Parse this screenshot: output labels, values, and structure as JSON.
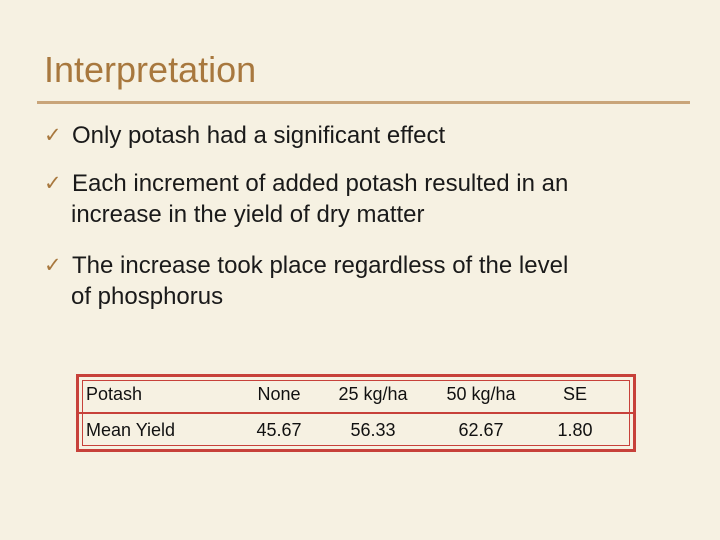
{
  "slide": {
    "title": "Interpretation"
  },
  "bullets": [
    {
      "icon": "check-icon",
      "line1": "Only potash had a significant effect",
      "line2": ""
    },
    {
      "icon": "check-icon",
      "line1": "Each increment of added potash resulted in an",
      "line2": "increase in the yield of dry matter"
    },
    {
      "icon": "check-icon",
      "line1": "The increase took place regardless of the level",
      "line2": "of phosphorus"
    }
  ],
  "table": {
    "headers": [
      "Potash",
      "None",
      "25 kg/ha",
      "50 kg/ha",
      "SE"
    ],
    "rows": [
      [
        "Mean Yield",
        "45.67",
        "56.33",
        "62.67",
        "1.80"
      ]
    ]
  },
  "colors": {
    "title": "#a8783e",
    "rule": "#c9a57a",
    "background": "#f6f1e2",
    "table_border": "#c7413a"
  }
}
